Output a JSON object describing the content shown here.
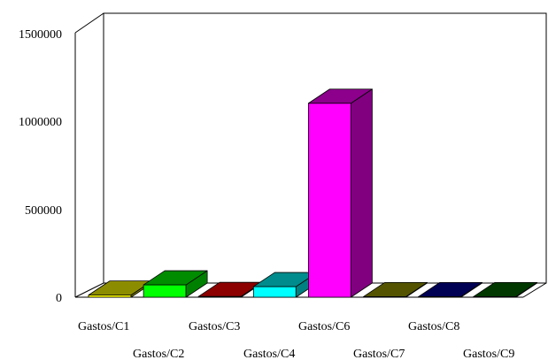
{
  "chart_data": {
    "type": "bar",
    "style": "3d-column",
    "categories": [
      "Gastos/C1",
      "Gastos/C2",
      "Gastos/C3",
      "Gastos/C4",
      "Gastos/C6",
      "Gastos/C7",
      "Gastos/C8",
      "Gastos/C9"
    ],
    "values": [
      12000,
      70000,
      4000,
      60000,
      1100000,
      2000,
      1000,
      2000
    ],
    "colors": [
      "#ffff00",
      "#00ff00",
      "#ff0000",
      "#00ffff",
      "#ff00ff",
      "#999900",
      "#000099",
      "#006600"
    ],
    "yticks": [
      "0",
      "500000",
      "1000000",
      "1500000"
    ],
    "ylim": [
      0,
      1500000
    ],
    "grid": false,
    "legend": "none"
  }
}
